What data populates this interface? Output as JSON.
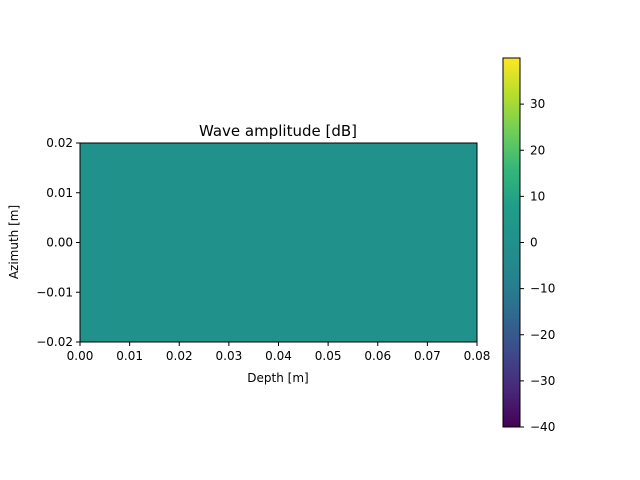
{
  "chart_data": {
    "type": "heatmap",
    "title": "Wave amplitude [dB]",
    "xlabel": "Depth [m]",
    "ylabel": "Azimuth [m]",
    "xlim": [
      0.0,
      0.08
    ],
    "ylim": [
      -0.02,
      0.02
    ],
    "x_ticks": [
      "0.00",
      "0.01",
      "0.02",
      "0.03",
      "0.04",
      "0.05",
      "0.06",
      "0.07",
      "0.08"
    ],
    "y_ticks": [
      "−0.02",
      "−0.01",
      "0.00",
      "0.01",
      "0.02"
    ],
    "field_value_db": 0,
    "field_description": "uniform field (all values ≈ 0 dB)",
    "colormap": "viridis",
    "colorbar": {
      "min": -40,
      "max": 40,
      "ticks": [
        "−40",
        "−30",
        "−20",
        "−10",
        "0",
        "10",
        "20",
        "30"
      ]
    },
    "grid": false,
    "legend": "none"
  },
  "colors": {
    "field": "#21918c",
    "axes": "#000000",
    "background": "#ffffff"
  }
}
